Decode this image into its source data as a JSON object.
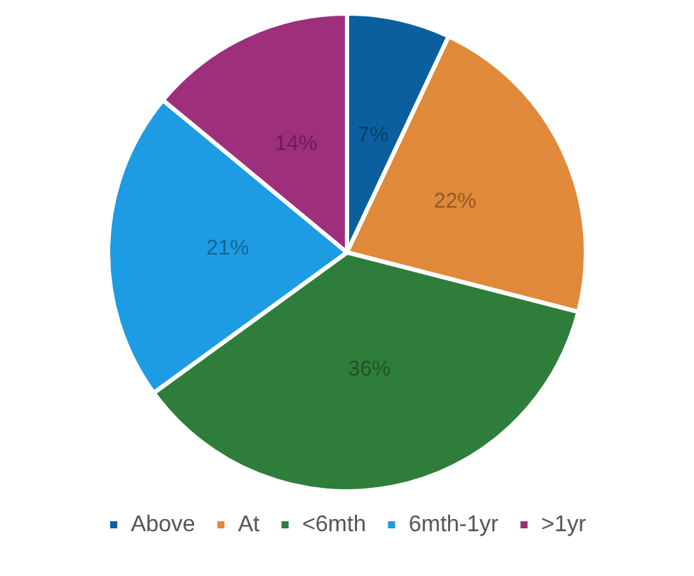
{
  "chart_data": {
    "type": "pie",
    "categories": [
      "Above",
      "At",
      "<6mth",
      "6mth-1yr",
      ">1yr"
    ],
    "values": [
      7,
      22,
      36,
      21,
      14
    ],
    "colors": [
      "#0b5f9e",
      "#e0893a",
      "#2f7d3a",
      "#1d9be3",
      "#9e2f7d"
    ],
    "value_labels": [
      "7%",
      "22%",
      "36%",
      "21%",
      "14%"
    ],
    "legend": "bottom"
  }
}
